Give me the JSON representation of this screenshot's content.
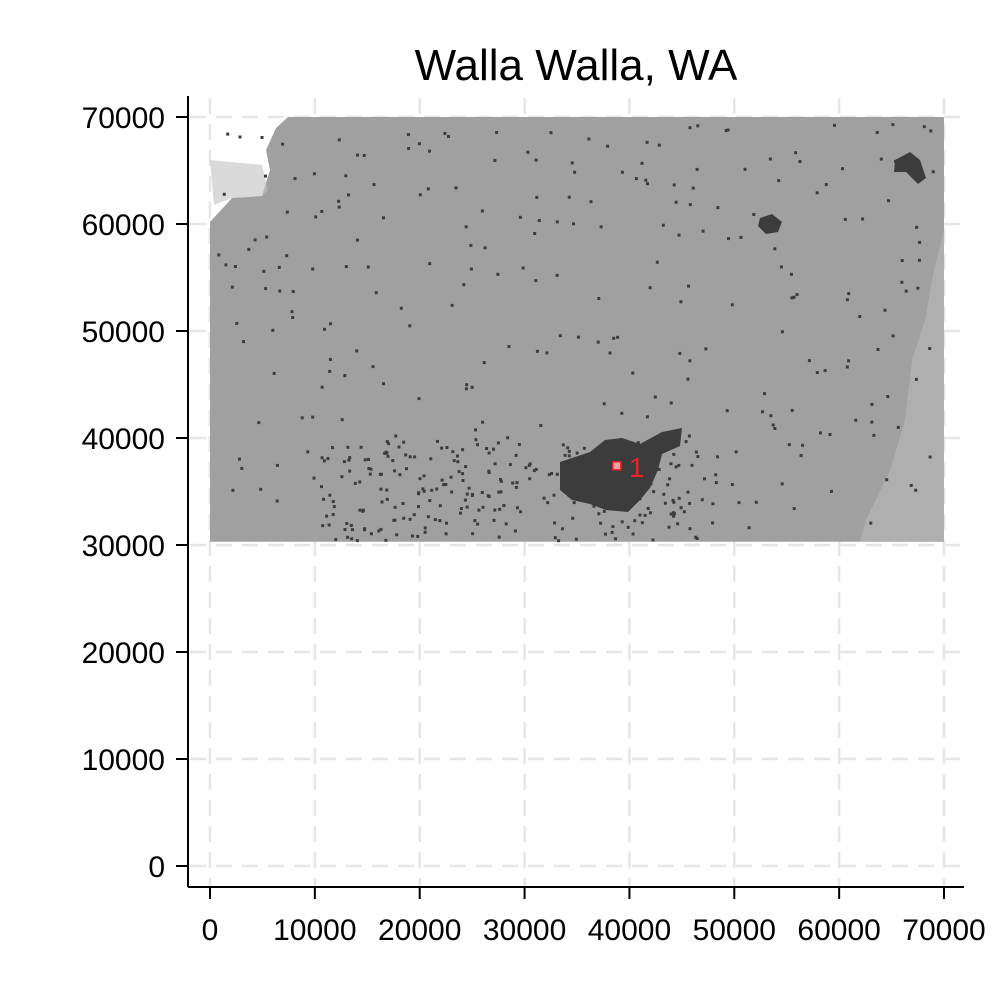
{
  "title": "Walla Walla, WA",
  "chart_data": {
    "type": "heatmap",
    "title": "Walla Walla, WA",
    "xlabel": "",
    "ylabel": "",
    "xlim": [
      0,
      70000
    ],
    "ylim": [
      0,
      70000
    ],
    "x_ticks": [
      "0",
      "10000",
      "20000",
      "30000",
      "40000",
      "50000",
      "60000",
      "70000"
    ],
    "y_ticks": [
      "0",
      "10000",
      "20000",
      "30000",
      "40000",
      "50000",
      "60000",
      "70000"
    ],
    "grid": true,
    "raster_extent": {
      "x": [
        0,
        70000
      ],
      "y": [
        30300,
        70000
      ]
    },
    "colors": {
      "land": "#a0a0a0",
      "developed": "#3c3c3c",
      "light_patch": "#c2c2c2",
      "marker": "#e8242a",
      "marker_fill": "#f4a0a0"
    },
    "markers": [
      {
        "label": "1",
        "x": 38800,
        "y": 37400
      }
    ]
  }
}
